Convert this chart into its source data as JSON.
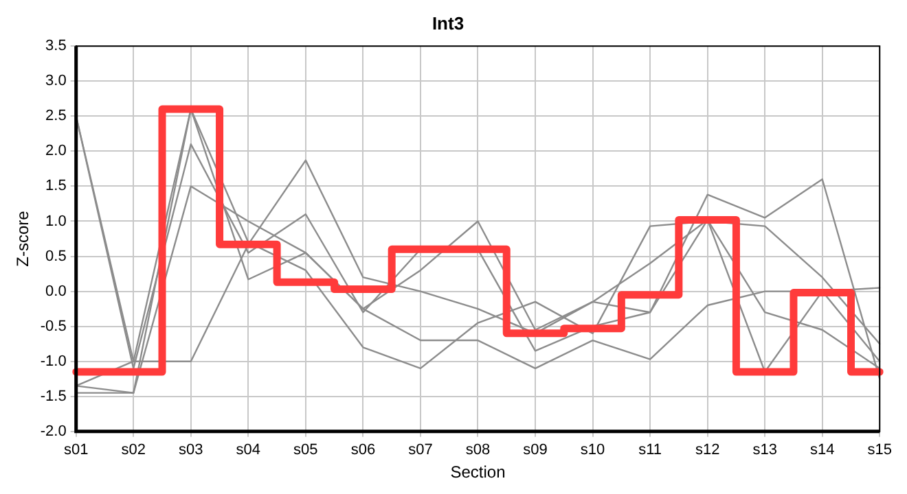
{
  "chart_data": {
    "type": "line",
    "title": "Int3",
    "xlabel": "Section",
    "ylabel": "Z-score",
    "categories": [
      "s01",
      "s02",
      "s03",
      "s04",
      "s05",
      "s06",
      "s07",
      "s08",
      "s09",
      "s10",
      "s11",
      "s12",
      "s13",
      "s14",
      "s15"
    ],
    "series": [
      {
        "type": "line",
        "color": "#8c8c8c",
        "values": [
          2.5,
          -1.0,
          2.6,
          0.17,
          0.55,
          -0.25,
          0.3,
          1.0,
          -0.55,
          -0.15,
          0.4,
          1.02,
          -1.15,
          0.0,
          -1.0
        ]
      },
      {
        "type": "line",
        "color": "#8c8c8c",
        "values": [
          2.5,
          -1.1,
          2.1,
          0.55,
          1.1,
          -0.3,
          0.6,
          0.6,
          -0.85,
          -0.5,
          -0.3,
          1.02,
          -0.3,
          -0.55,
          -1.1
        ]
      },
      {
        "type": "line",
        "color": "#8c8c8c",
        "values": [
          -1.35,
          -1.0,
          -1.0,
          0.67,
          1.87,
          0.2,
          0.0,
          -0.25,
          -0.6,
          -0.15,
          -0.3,
          1.38,
          1.05,
          1.6,
          -1.25
        ]
      },
      {
        "type": "line",
        "color": "#8c8c8c",
        "values": [
          -1.35,
          -1.45,
          2.6,
          0.7,
          0.3,
          -0.8,
          -1.1,
          -0.45,
          -0.15,
          -0.6,
          0.93,
          1.0,
          0.93,
          0.2,
          -0.75
        ]
      },
      {
        "type": "line",
        "color": "#8c8c8c",
        "values": [
          -1.45,
          -1.45,
          1.5,
          1.0,
          0.55,
          -0.25,
          -0.7,
          -0.7,
          -1.1,
          -0.7,
          -0.97,
          -0.2,
          0.0,
          0.0,
          0.05
        ]
      },
      {
        "type": "step",
        "color": "#ff3b3b",
        "values": [
          -1.15,
          -1.15,
          2.6,
          0.67,
          0.13,
          0.03,
          0.6,
          0.6,
          -0.6,
          -0.53,
          -0.05,
          1.02,
          -1.15,
          -0.02,
          -1.15
        ]
      }
    ],
    "ylim": [
      -2,
      3.5
    ],
    "yticks": [
      {
        "value": -2,
        "label": "-2.0"
      },
      {
        "value": -1.5,
        "label": "-1.5"
      },
      {
        "value": -1,
        "label": "-1.0"
      },
      {
        "value": -0.5,
        "label": "-0.5"
      },
      {
        "value": 0,
        "label": "0.0"
      },
      {
        "value": 0.5,
        "label": "0.5"
      },
      {
        "value": 1,
        "label": "1.0"
      },
      {
        "value": 1.5,
        "label": "1.5"
      },
      {
        "value": 2,
        "label": "2.0"
      },
      {
        "value": 2.5,
        "label": "2.5"
      },
      {
        "value": 3,
        "label": "3.0"
      },
      {
        "value": 3.5,
        "label": "3.5"
      }
    ],
    "grid": true,
    "legend": false,
    "marker": "none",
    "line_style": "solid"
  }
}
